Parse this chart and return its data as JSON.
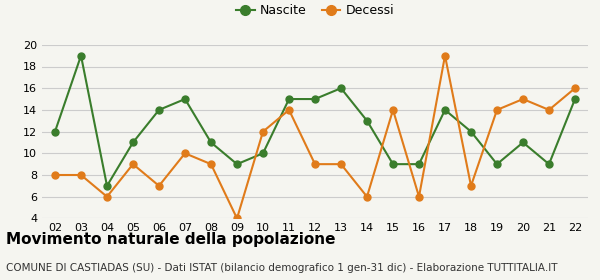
{
  "x_labels": [
    "02",
    "03",
    "04",
    "05",
    "06",
    "07",
    "08",
    "09",
    "10",
    "11",
    "12",
    "13",
    "14",
    "15",
    "16",
    "17",
    "18",
    "19",
    "20",
    "21",
    "22"
  ],
  "x_values": [
    2,
    3,
    4,
    5,
    6,
    7,
    8,
    9,
    10,
    11,
    12,
    13,
    14,
    15,
    16,
    17,
    18,
    19,
    20,
    21,
    22
  ],
  "nascite": [
    12,
    19,
    7,
    11,
    14,
    15,
    11,
    9,
    10,
    15,
    15,
    16,
    13,
    9,
    9,
    14,
    12,
    9,
    11,
    9,
    15
  ],
  "decessi": [
    8,
    8,
    6,
    9,
    7,
    10,
    9,
    4,
    12,
    14,
    9,
    9,
    6,
    14,
    6,
    19,
    7,
    14,
    15,
    14,
    16
  ],
  "nascite_color": "#3a7d2c",
  "decessi_color": "#e07b1a",
  "bg_color": "#f5f5f0",
  "grid_color": "#cccccc",
  "ylim": [
    4,
    20
  ],
  "yticks": [
    4,
    6,
    8,
    10,
    12,
    14,
    16,
    18,
    20
  ],
  "title": "Movimento naturale della popolazione",
  "subtitle": "COMUNE DI CASTIADAS (SU) - Dati ISTAT (bilancio demografico 1 gen-31 dic) - Elaborazione TUTTITALIA.IT",
  "legend_nascite": "Nascite",
  "legend_decessi": "Decessi",
  "title_fontsize": 11,
  "subtitle_fontsize": 7.5,
  "marker_size": 5
}
